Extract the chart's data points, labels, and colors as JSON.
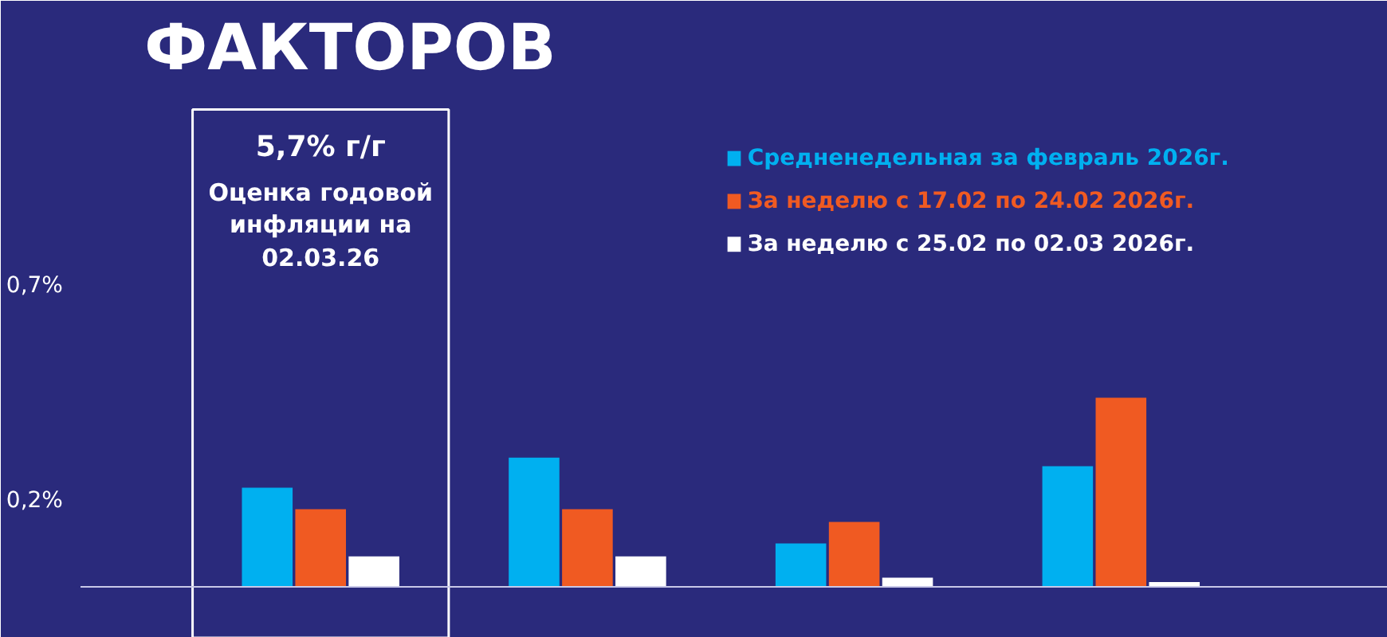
{
  "chart_data": {
    "type": "bar",
    "title": "ФАКТОРОВ",
    "categories": [
      null,
      null,
      null,
      null
    ],
    "series": [
      {
        "name": "Средненедельная за февраль 2026г.",
        "color": "#00b0f0",
        "values": [
          0.23,
          0.3,
          0.1,
          0.28
        ]
      },
      {
        "name": "За неделю с 17.02 по 24.02 2026г.",
        "color": "#f05a22",
        "values": [
          0.18,
          0.18,
          0.15,
          0.44
        ]
      },
      {
        "name": "За неделю с 25.02 по 02.03 2026г.",
        "color": "#ffffff",
        "values": [
          0.07,
          0.07,
          0.02,
          0.01
        ]
      }
    ],
    "ylim": [
      -0.12,
      1.15
    ],
    "yticks": [
      {
        "value": 0.7,
        "label": "0,7%"
      },
      {
        "value": 0.2,
        "label": "0,2%"
      }
    ],
    "annotations": [
      "5,7% г/г",
      "Оценка годовой\nинфляции на\n02.03.26"
    ],
    "grid": false,
    "legend": "top right"
  }
}
